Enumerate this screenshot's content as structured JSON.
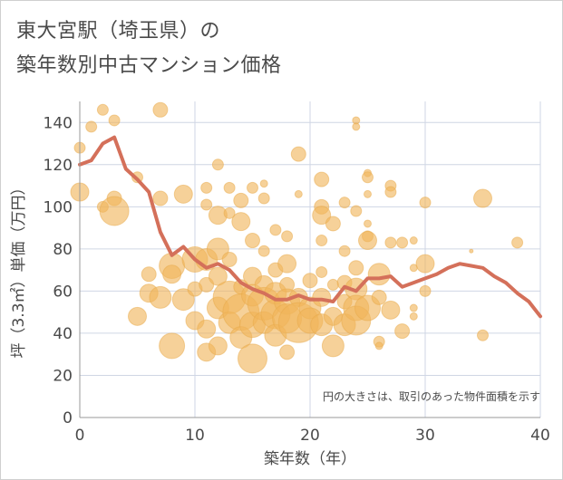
{
  "title_lines": [
    "東大宮駅（埼玉県）の",
    "築年数別中古マンション価格"
  ],
  "chart_data": {
    "type": "scatter",
    "title": "東大宮駅（埼玉県）の築年数別中古マンション価格",
    "xlabel": "築年数（年）",
    "ylabel": "坪（3.3㎡）単価（万円）",
    "xlim": [
      0,
      40
    ],
    "ylim": [
      0,
      150
    ],
    "xticks": [
      0,
      10,
      20,
      30,
      40
    ],
    "yticks": [
      0,
      20,
      40,
      60,
      80,
      100,
      120,
      140
    ],
    "grid": true,
    "note": "円の大きさは、取引のあった物件面積を示す",
    "colors": {
      "bubble": "#f0b45a",
      "line": "#d4705a",
      "grid": "#cfd6e4",
      "text": "#4a4a4a"
    },
    "bubbles": [
      {
        "x": 0,
        "y": 128,
        "r": 3
      },
      {
        "x": 0,
        "y": 107,
        "r": 5
      },
      {
        "x": 1,
        "y": 138,
        "r": 3
      },
      {
        "x": 2,
        "y": 146,
        "r": 3
      },
      {
        "x": 2,
        "y": 100,
        "r": 3
      },
      {
        "x": 3,
        "y": 141,
        "r": 3
      },
      {
        "x": 3,
        "y": 104,
        "r": 4
      },
      {
        "x": 3,
        "y": 98,
        "r": 8
      },
      {
        "x": 5,
        "y": 114,
        "r": 3
      },
      {
        "x": 5,
        "y": 48,
        "r": 5
      },
      {
        "x": 6,
        "y": 68,
        "r": 4
      },
      {
        "x": 6,
        "y": 59,
        "r": 5
      },
      {
        "x": 7,
        "y": 146,
        "r": 4
      },
      {
        "x": 7,
        "y": 104,
        "r": 4
      },
      {
        "x": 7,
        "y": 57,
        "r": 6
      },
      {
        "x": 8,
        "y": 72,
        "r": 7
      },
      {
        "x": 8,
        "y": 68,
        "r": 5
      },
      {
        "x": 8,
        "y": 34,
        "r": 7
      },
      {
        "x": 9,
        "y": 106,
        "r": 5
      },
      {
        "x": 9,
        "y": 56,
        "r": 6
      },
      {
        "x": 10,
        "y": 75,
        "r": 7
      },
      {
        "x": 10,
        "y": 61,
        "r": 4
      },
      {
        "x": 10,
        "y": 46,
        "r": 5
      },
      {
        "x": 11,
        "y": 109,
        "r": 3
      },
      {
        "x": 11,
        "y": 101,
        "r": 3
      },
      {
        "x": 11,
        "y": 75,
        "r": 6
      },
      {
        "x": 11,
        "y": 63,
        "r": 4
      },
      {
        "x": 11,
        "y": 42,
        "r": 5
      },
      {
        "x": 11,
        "y": 31,
        "r": 5
      },
      {
        "x": 12,
        "y": 120,
        "r": 3
      },
      {
        "x": 12,
        "y": 96,
        "r": 5
      },
      {
        "x": 12,
        "y": 80,
        "r": 6
      },
      {
        "x": 12,
        "y": 67,
        "r": 5
      },
      {
        "x": 12,
        "y": 52,
        "r": 6
      },
      {
        "x": 12,
        "y": 34,
        "r": 5
      },
      {
        "x": 13,
        "y": 109,
        "r": 3
      },
      {
        "x": 13,
        "y": 97,
        "r": 3
      },
      {
        "x": 13,
        "y": 75,
        "r": 4
      },
      {
        "x": 13,
        "y": 57,
        "r": 9
      },
      {
        "x": 13,
        "y": 45,
        "r": 6
      },
      {
        "x": 14,
        "y": 103,
        "r": 4
      },
      {
        "x": 14,
        "y": 93,
        "r": 5
      },
      {
        "x": 14,
        "y": 62,
        "r": 4
      },
      {
        "x": 14,
        "y": 50,
        "r": 10
      },
      {
        "x": 14,
        "y": 38,
        "r": 6
      },
      {
        "x": 15,
        "y": 109,
        "r": 3
      },
      {
        "x": 15,
        "y": 84,
        "r": 4
      },
      {
        "x": 15,
        "y": 67,
        "r": 5
      },
      {
        "x": 15,
        "y": 58,
        "r": 6
      },
      {
        "x": 15,
        "y": 44,
        "r": 7
      },
      {
        "x": 15,
        "y": 28,
        "r": 8
      },
      {
        "x": 16,
        "y": 111,
        "r": 2
      },
      {
        "x": 16,
        "y": 104,
        "r": 3
      },
      {
        "x": 16,
        "y": 79,
        "r": 3
      },
      {
        "x": 16,
        "y": 63,
        "r": 5
      },
      {
        "x": 16,
        "y": 54,
        "r": 9
      },
      {
        "x": 16,
        "y": 45,
        "r": 6
      },
      {
        "x": 17,
        "y": 89,
        "r": 3
      },
      {
        "x": 17,
        "y": 70,
        "r": 4
      },
      {
        "x": 17,
        "y": 59,
        "r": 6
      },
      {
        "x": 17,
        "y": 49,
        "r": 8
      },
      {
        "x": 17,
        "y": 39,
        "r": 6
      },
      {
        "x": 18,
        "y": 86,
        "r": 3
      },
      {
        "x": 18,
        "y": 73,
        "r": 5
      },
      {
        "x": 18,
        "y": 63,
        "r": 4
      },
      {
        "x": 18,
        "y": 55,
        "r": 7
      },
      {
        "x": 18,
        "y": 47,
        "r": 8
      },
      {
        "x": 18,
        "y": 31,
        "r": 4
      },
      {
        "x": 19,
        "y": 125,
        "r": 4
      },
      {
        "x": 19,
        "y": 106,
        "r": 2
      },
      {
        "x": 19,
        "y": 57,
        "r": 5
      },
      {
        "x": 19,
        "y": 45,
        "r": 11
      },
      {
        "x": 20,
        "y": 65,
        "r": 4
      },
      {
        "x": 20,
        "y": 52,
        "r": 6
      },
      {
        "x": 20,
        "y": 46,
        "r": 7
      },
      {
        "x": 21,
        "y": 113,
        "r": 4
      },
      {
        "x": 21,
        "y": 100,
        "r": 4
      },
      {
        "x": 21,
        "y": 96,
        "r": 5
      },
      {
        "x": 21,
        "y": 84,
        "r": 3
      },
      {
        "x": 21,
        "y": 69,
        "r": 3
      },
      {
        "x": 21,
        "y": 57,
        "r": 5
      },
      {
        "x": 21,
        "y": 44,
        "r": 6
      },
      {
        "x": 22,
        "y": 92,
        "r": 4
      },
      {
        "x": 22,
        "y": 63,
        "r": 3
      },
      {
        "x": 22,
        "y": 48,
        "r": 5
      },
      {
        "x": 22,
        "y": 34,
        "r": 6
      },
      {
        "x": 23,
        "y": 102,
        "r": 3
      },
      {
        "x": 23,
        "y": 79,
        "r": 3
      },
      {
        "x": 23,
        "y": 64,
        "r": 4
      },
      {
        "x": 23,
        "y": 55,
        "r": 4
      },
      {
        "x": 23,
        "y": 44,
        "r": 6
      },
      {
        "x": 24,
        "y": 141,
        "r": 2
      },
      {
        "x": 24,
        "y": 138,
        "r": 2
      },
      {
        "x": 24,
        "y": 98,
        "r": 3
      },
      {
        "x": 24,
        "y": 71,
        "r": 4
      },
      {
        "x": 24,
        "y": 61,
        "r": 6
      },
      {
        "x": 24,
        "y": 52,
        "r": 7
      },
      {
        "x": 24,
        "y": 46,
        "r": 8
      },
      {
        "x": 25,
        "y": 116,
        "r": 2
      },
      {
        "x": 25,
        "y": 114,
        "r": 3
      },
      {
        "x": 25,
        "y": 106,
        "r": 2
      },
      {
        "x": 25,
        "y": 92,
        "r": 2
      },
      {
        "x": 25,
        "y": 86,
        "r": 3
      },
      {
        "x": 25,
        "y": 84,
        "r": 5
      },
      {
        "x": 25,
        "y": 52,
        "r": 7
      },
      {
        "x": 26,
        "y": 68,
        "r": 6
      },
      {
        "x": 26,
        "y": 57,
        "r": 4
      },
      {
        "x": 26,
        "y": 36,
        "r": 3
      },
      {
        "x": 26,
        "y": 34,
        "r": 2
      },
      {
        "x": 27,
        "y": 110,
        "r": 3
      },
      {
        "x": 27,
        "y": 107,
        "r": 3
      },
      {
        "x": 27,
        "y": 83,
        "r": 3
      },
      {
        "x": 27,
        "y": 51,
        "r": 5
      },
      {
        "x": 28,
        "y": 83,
        "r": 3
      },
      {
        "x": 28,
        "y": 41,
        "r": 4
      },
      {
        "x": 29,
        "y": 84,
        "r": 2
      },
      {
        "x": 29,
        "y": 71,
        "r": 2
      },
      {
        "x": 29,
        "y": 52,
        "r": 2
      },
      {
        "x": 29,
        "y": 48,
        "r": 2
      },
      {
        "x": 30,
        "y": 102,
        "r": 3
      },
      {
        "x": 30,
        "y": 73,
        "r": 5
      },
      {
        "x": 30,
        "y": 60,
        "r": 3
      },
      {
        "x": 34,
        "y": 79,
        "r": 1
      },
      {
        "x": 35,
        "y": 104,
        "r": 5
      },
      {
        "x": 35,
        "y": 39,
        "r": 3
      },
      {
        "x": 38,
        "y": 83,
        "r": 3
      }
    ],
    "line": [
      {
        "x": 0,
        "y": 120
      },
      {
        "x": 1,
        "y": 122
      },
      {
        "x": 2,
        "y": 130
      },
      {
        "x": 3,
        "y": 133
      },
      {
        "x": 4,
        "y": 118
      },
      {
        "x": 5,
        "y": 113
      },
      {
        "x": 6,
        "y": 107
      },
      {
        "x": 7,
        "y": 88
      },
      {
        "x": 8,
        "y": 77
      },
      {
        "x": 9,
        "y": 81
      },
      {
        "x": 10,
        "y": 75
      },
      {
        "x": 11,
        "y": 71
      },
      {
        "x": 12,
        "y": 73
      },
      {
        "x": 13,
        "y": 70
      },
      {
        "x": 14,
        "y": 64
      },
      {
        "x": 15,
        "y": 61
      },
      {
        "x": 16,
        "y": 59
      },
      {
        "x": 17,
        "y": 56
      },
      {
        "x": 18,
        "y": 56
      },
      {
        "x": 19,
        "y": 58
      },
      {
        "x": 20,
        "y": 56
      },
      {
        "x": 21,
        "y": 56
      },
      {
        "x": 22,
        "y": 55
      },
      {
        "x": 23,
        "y": 62
      },
      {
        "x": 24,
        "y": 60
      },
      {
        "x": 25,
        "y": 66
      },
      {
        "x": 26,
        "y": 66
      },
      {
        "x": 27,
        "y": 67
      },
      {
        "x": 28,
        "y": 62
      },
      {
        "x": 29,
        "y": 64
      },
      {
        "x": 30,
        "y": 66
      },
      {
        "x": 31,
        "y": 68
      },
      {
        "x": 32,
        "y": 71
      },
      {
        "x": 33,
        "y": 73
      },
      {
        "x": 34,
        "y": 72
      },
      {
        "x": 35,
        "y": 71
      },
      {
        "x": 36,
        "y": 67
      },
      {
        "x": 37,
        "y": 64
      },
      {
        "x": 38,
        "y": 59
      },
      {
        "x": 39,
        "y": 55
      },
      {
        "x": 40,
        "y": 48
      }
    ]
  }
}
